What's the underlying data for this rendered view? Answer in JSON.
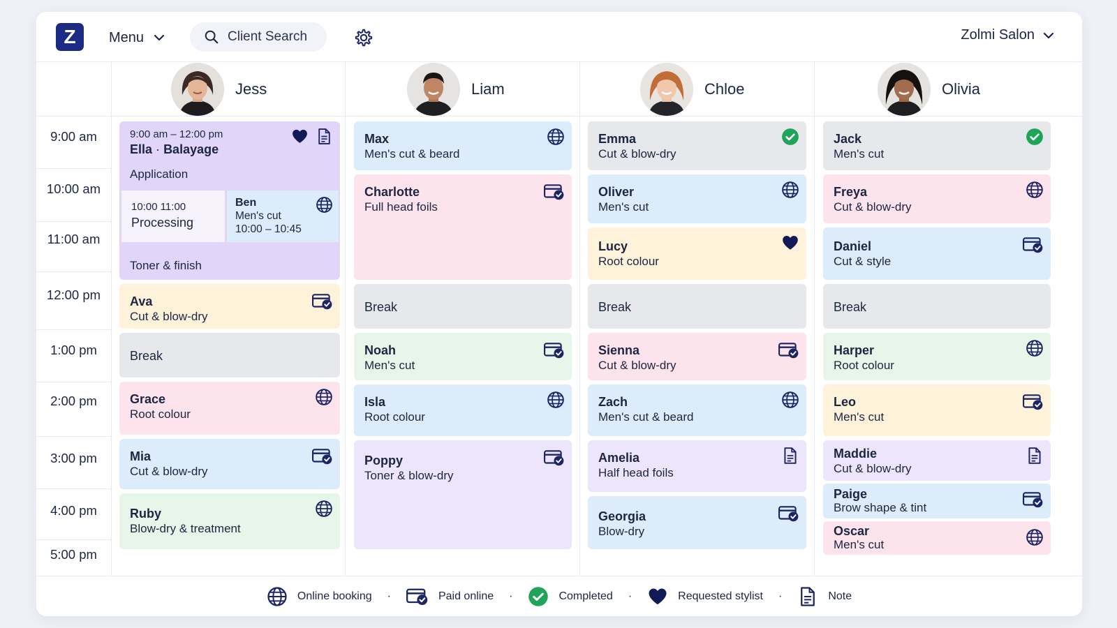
{
  "topbar": {
    "logo_letter": "Z",
    "menu_label": "Menu",
    "search_placeholder": "Client Search",
    "salon_name": "Zolmi Salon"
  },
  "stylists": [
    {
      "name": "Jess"
    },
    {
      "name": "Liam"
    },
    {
      "name": "Chloe"
    },
    {
      "name": "Olivia"
    }
  ],
  "times": [
    "9:00 am",
    "10:00 am",
    "11:00 am",
    "12:00 pm",
    "1:00 pm",
    "2:00 pm",
    "3:00 pm",
    "4:00 pm",
    "5:00 pm"
  ],
  "ella": {
    "time_range": "9:00 am – 12:00 pm",
    "client": "Ella",
    "separator": "·",
    "service": "Balayage",
    "phase1": "Application",
    "processing_time": "10:00  11:00",
    "processing_label": "Processing",
    "phase3": "Toner & finish",
    "ben": {
      "name": "Ben",
      "service": "Men's cut",
      "time": "10:00 – 10:45"
    }
  },
  "columns": {
    "jess": [
      {
        "name": "Ava",
        "service": "Cut & blow-dry",
        "icon": "paid-online-icon"
      },
      {
        "name": "Break"
      },
      {
        "name": "Grace",
        "service": "Root colour",
        "icon": "online-booking-icon"
      },
      {
        "name": "Mia",
        "service": "Cut & blow-dry",
        "icon": "paid-online-icon"
      },
      {
        "name": "Ruby",
        "service": "Blow-dry & treatment",
        "icon": "online-booking-icon"
      }
    ],
    "liam": [
      {
        "name": "Max",
        "service": "Men's cut & beard",
        "icon": "online-booking-icon"
      },
      {
        "name": "Charlotte",
        "service": "Full head foils",
        "icon": "paid-online-icon"
      },
      {
        "name": "Break"
      },
      {
        "name": "Noah",
        "service": "Men's cut",
        "icon": "paid-online-icon"
      },
      {
        "name": "Isla",
        "service": "Root colour",
        "icon": "online-booking-icon"
      },
      {
        "name": "Poppy",
        "service": "Toner & blow-dry",
        "icon": "paid-online-icon"
      }
    ],
    "chloe": [
      {
        "name": "Emma",
        "service": "Cut & blow-dry",
        "icon": "completed-icon"
      },
      {
        "name": "Oliver",
        "service": "Men's cut",
        "icon": "online-booking-icon"
      },
      {
        "name": "Lucy",
        "service": "Root colour",
        "icon": "requested-stylist-icon"
      },
      {
        "name": "Break"
      },
      {
        "name": "Sienna",
        "service": "Cut & blow-dry",
        "icon": "paid-online-icon"
      },
      {
        "name": "Zach",
        "service": "Men's cut & beard",
        "icon": "online-booking-icon"
      },
      {
        "name": "Amelia",
        "service": "Half head foils",
        "icon": "note-icon"
      },
      {
        "name": "Georgia",
        "service": "Blow-dry",
        "icon": "paid-online-icon"
      }
    ],
    "olivia": [
      {
        "name": "Jack",
        "service": "Men's cut",
        "icon": "completed-icon"
      },
      {
        "name": "Freya",
        "service": "Cut & blow-dry",
        "icon": "online-booking-icon"
      },
      {
        "name": "Daniel",
        "service": "Cut & style",
        "icon": "paid-online-icon"
      },
      {
        "name": "Break"
      },
      {
        "name": "Harper",
        "service": "Root colour",
        "icon": "online-booking-icon"
      },
      {
        "name": "Leo",
        "service": "Men's cut",
        "icon": "paid-online-icon"
      },
      {
        "name": "Maddie",
        "service": "Cut & blow-dry",
        "icon": "note-icon"
      },
      {
        "name": "Paige",
        "service": "Brow shape & tint",
        "icon": "paid-online-icon"
      },
      {
        "name": "Oscar",
        "service": "Men's cut",
        "icon": "online-booking-icon"
      }
    ]
  },
  "legend": {
    "separator": "·",
    "items": [
      "Online booking",
      "Paid online",
      "Completed",
      "Requested stylist",
      "Note"
    ]
  },
  "colors": {
    "brand": "#1b2a83",
    "icon_navy": "#1d2463",
    "completed_green": "#1fa45a",
    "blue": "#dcecfb",
    "pink": "#fde3ec",
    "yellow": "#fff2da",
    "green": "#e6f6e9",
    "purple": "#ece5fb",
    "grey": "#e7e8eb"
  }
}
